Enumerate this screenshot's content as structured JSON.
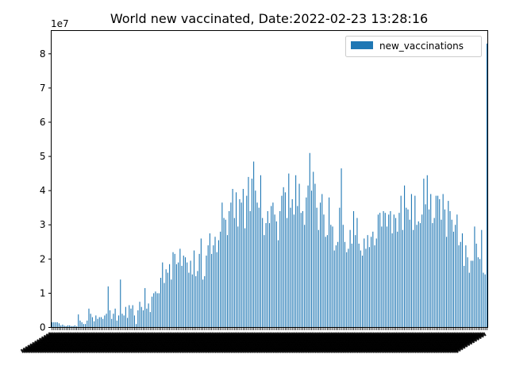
{
  "chart_data": {
    "type": "bar",
    "title": "World new vaccinated, Date:2022-02-23 13:28:16",
    "xlabel": "",
    "ylabel": "",
    "y_offset_label": "1e7",
    "ylim": [
      0,
      86800000
    ],
    "yticks": [
      0,
      10000000,
      20000000,
      30000000,
      40000000,
      50000000,
      60000000,
      70000000,
      80000000
    ],
    "ytick_labels": [
      "0",
      "1",
      "2",
      "3",
      "4",
      "5",
      "6",
      "7",
      "8"
    ],
    "legend_position": "top-right",
    "grid": false,
    "series": [
      {
        "name": "new_vaccinations",
        "color": "#1f77b4",
        "values": [
          1500000,
          1500000,
          1500000,
          1500000,
          1200000,
          600000,
          800000,
          500000,
          400000,
          600000,
          600000,
          400000,
          400000,
          600000,
          300000,
          3800000,
          2000000,
          1500000,
          1000000,
          1000000,
          2000000,
          5500000,
          4000000,
          3000000,
          1800000,
          3500000,
          2500000,
          3000000,
          3000000,
          2500000,
          3500000,
          4000000,
          12000000,
          5000000,
          2500000,
          4000000,
          5500000,
          2000000,
          3500000,
          14000000,
          4000000,
          3500000,
          6000000,
          2800000,
          6500000,
          5500000,
          6500000,
          3500000,
          1000000,
          5000000,
          7500000,
          6000000,
          5000000,
          11500000,
          5500000,
          7000000,
          4500000,
          9000000,
          10000000,
          10500000,
          10000000,
          10000000,
          14500000,
          19000000,
          13000000,
          17000000,
          16000000,
          18500000,
          14000000,
          22000000,
          21500000,
          18500000,
          19000000,
          23000000,
          18000000,
          21000000,
          20500000,
          19000000,
          16000000,
          19500000,
          15500000,
          22500000,
          15000000,
          16500000,
          21500000,
          26000000,
          14000000,
          15000000,
          21000000,
          24000000,
          27500000,
          21500000,
          24000000,
          26500000,
          22000000,
          25500000,
          28000000,
          36500000,
          32000000,
          31500000,
          27000000,
          34000000,
          36500000,
          40500000,
          32000000,
          39500000,
          29500000,
          37500000,
          36500000,
          40500000,
          29000000,
          38500000,
          44000000,
          34000000,
          43500000,
          48500000,
          40000000,
          36500000,
          35000000,
          44500000,
          32000000,
          27000000,
          30500000,
          34000000,
          30500000,
          35500000,
          36500000,
          33000000,
          31000000,
          25500000,
          34000000,
          38500000,
          41000000,
          39500000,
          32000000,
          45000000,
          35000000,
          37500000,
          33000000,
          44500000,
          35500000,
          42000000,
          33500000,
          34000000,
          30000000,
          38000000,
          41500000,
          51000000,
          40000000,
          45500000,
          42000000,
          35000000,
          28500000,
          36500000,
          39000000,
          33000000,
          26500000,
          27000000,
          38000000,
          30000000,
          29500000,
          22500000,
          24000000,
          25000000,
          35000000,
          46500000,
          30000000,
          25000000,
          22000000,
          23000000,
          28500000,
          24500000,
          34000000,
          27000000,
          32000000,
          24500000,
          22500000,
          21000000,
          26000000,
          23000000,
          27000000,
          23500000,
          26500000,
          28000000,
          24000000,
          26000000,
          33000000,
          33500000,
          29500000,
          34000000,
          33500000,
          29500000,
          33000000,
          34000000,
          27500000,
          33000000,
          32000000,
          28000000,
          33500000,
          38500000,
          28500000,
          41500000,
          35000000,
          34500000,
          31500000,
          39000000,
          28500000,
          38500000,
          30000000,
          31000000,
          30500000,
          33000000,
          43500000,
          36000000,
          44500000,
          34500000,
          39000000,
          30500000,
          32000000,
          38500000,
          38500000,
          37500000,
          31500000,
          39000000,
          34500000,
          26500000,
          37000000,
          34000000,
          31500000,
          28000000,
          30000000,
          33000000,
          24000000,
          25000000,
          27500000,
          18000000,
          24000000,
          20500000,
          16000000,
          19500000,
          19500000,
          29500000,
          24500000,
          20500000,
          20000000,
          28500000,
          16000000,
          15500000,
          83000000
        ]
      }
    ]
  }
}
